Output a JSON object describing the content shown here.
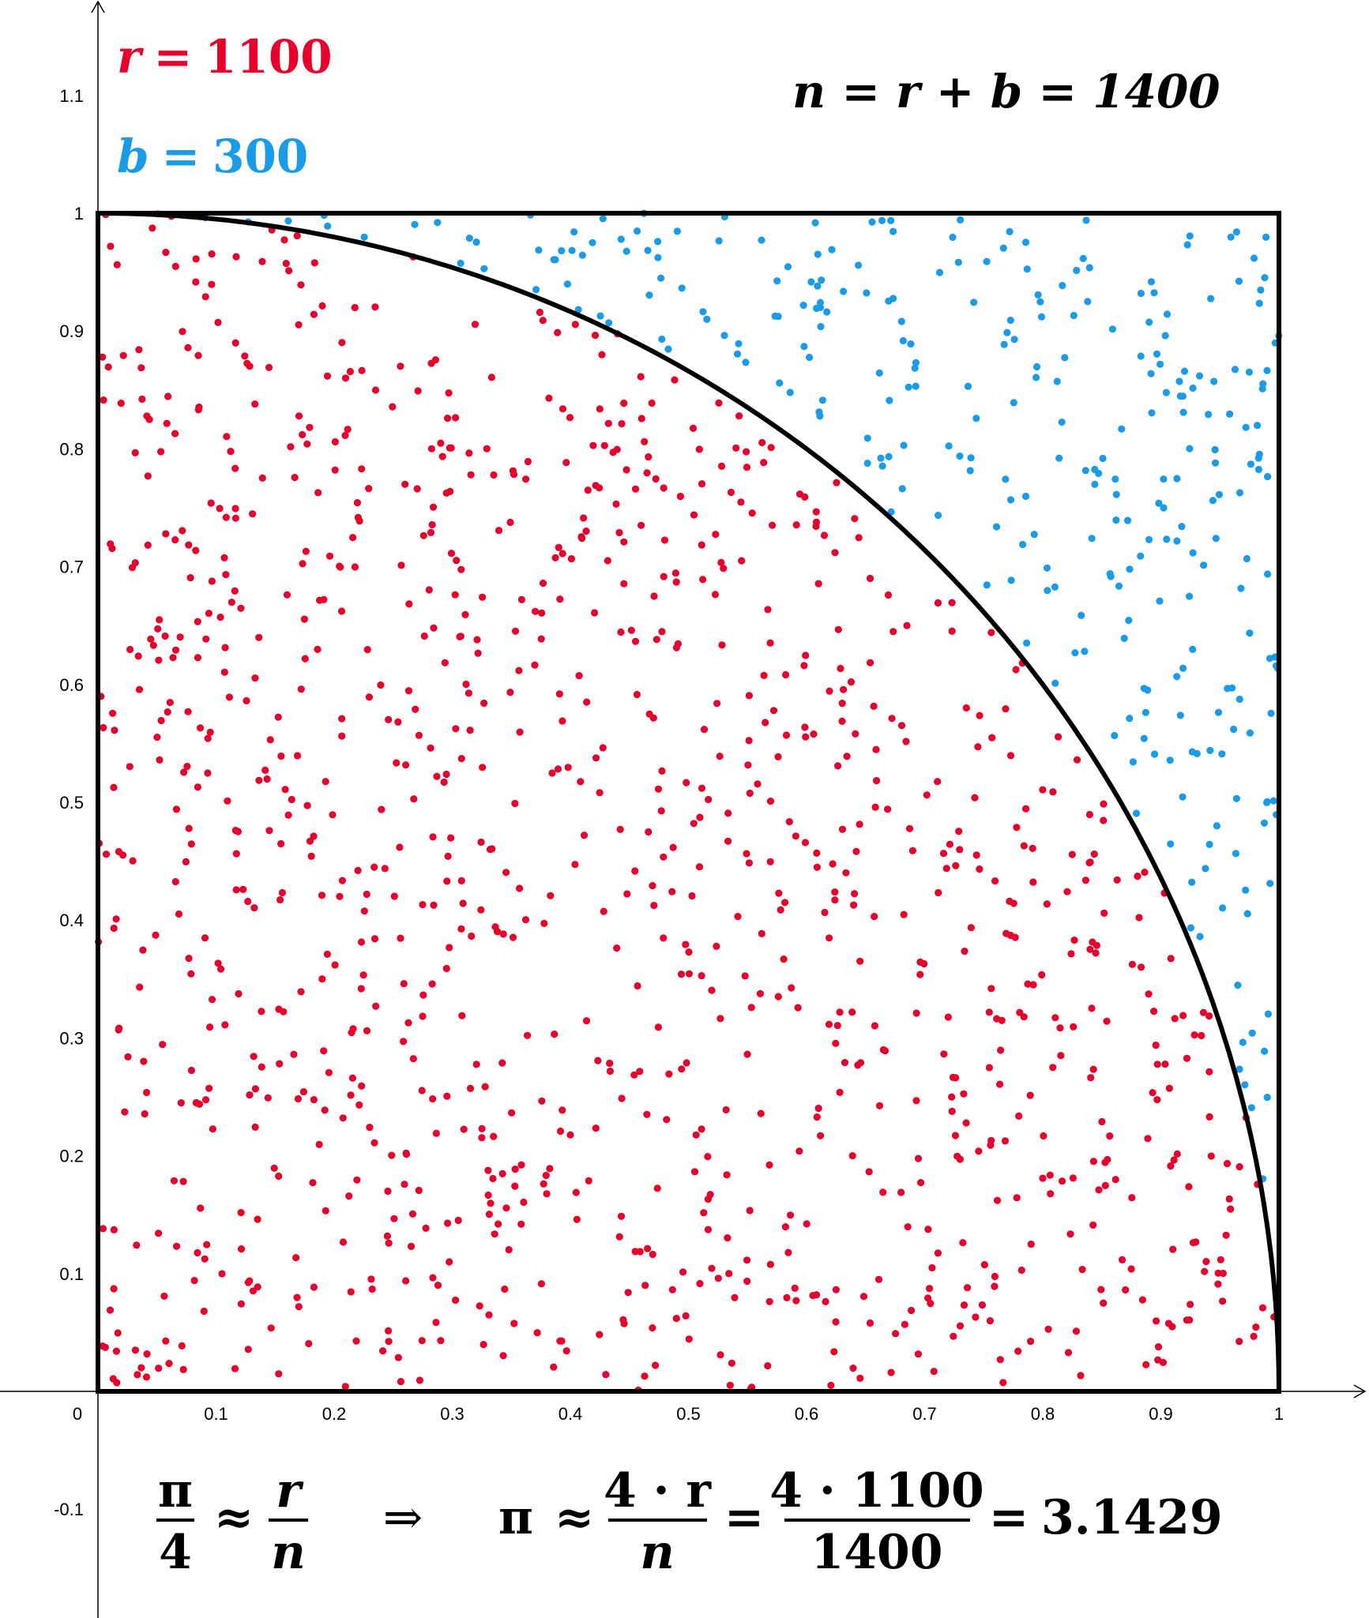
{
  "chart_data": {
    "type": "scatter",
    "title": "",
    "xlabel": "",
    "ylabel": "",
    "xlim": [
      -0.12,
      1.08
    ],
    "ylim": [
      -0.19,
      1.19
    ],
    "x_ticks": [
      "0",
      "0.1",
      "0.2",
      "0.3",
      "0.4",
      "0.5",
      "0.6",
      "0.7",
      "0.8",
      "0.9",
      "1"
    ],
    "y_ticks": [
      "-0.1",
      "0.1",
      "0.2",
      "0.3",
      "0.4",
      "0.5",
      "0.6",
      "0.7",
      "0.8",
      "0.9",
      "1",
      "1.1"
    ],
    "grid": false,
    "shapes": [
      "unit square [0,1]x[0,1]",
      "quarter circle x^2+y^2=1"
    ],
    "series": [
      {
        "name": "r",
        "count": 1100,
        "color": "#e8002d"
      },
      {
        "name": "b",
        "count": 300,
        "color": "#1a9be8"
      }
    ],
    "annotations": {
      "r_var": "r",
      "r_eq": "=",
      "r_val": "1100",
      "b_var": "b",
      "b_eq": "=",
      "b_val": "300",
      "n_formula": "n = r + b = 1400",
      "f_pi": "π",
      "f_4": "4",
      "f_approx": "≈",
      "f_r": "r",
      "f_n": "n",
      "f_implies": "⇒",
      "f_pi2": "π",
      "f_approx2": "≈",
      "f_num1": "4 · r",
      "f_den1": "n",
      "f_eq1": "=",
      "f_num2": "4 · 1100",
      "f_den2": "1400",
      "f_eq2": "=",
      "f_result": "3.1429"
    }
  },
  "colors": {
    "red": "#e8002d",
    "blue": "#1a9be8",
    "ink": "#000000"
  }
}
